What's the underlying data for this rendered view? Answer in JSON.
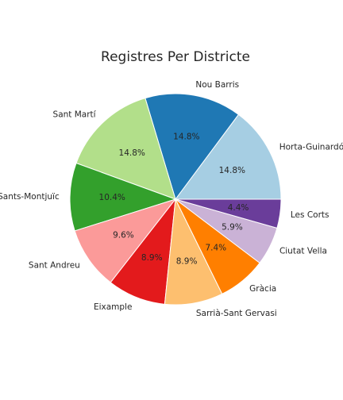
{
  "chart_data": {
    "type": "pie",
    "title": "Registres Per Districte",
    "slices": [
      {
        "label": "Horta-Guinardó",
        "value": 14.8,
        "pct_label": "14.8%",
        "color": "#a6cee3"
      },
      {
        "label": "Nou Barris",
        "value": 14.8,
        "pct_label": "14.8%",
        "color": "#1f78b4"
      },
      {
        "label": "Sant Martí",
        "value": 14.8,
        "pct_label": "14.8%",
        "color": "#b2df8a"
      },
      {
        "label": "Sants-Montjuïc",
        "value": 10.4,
        "pct_label": "10.4%",
        "color": "#33a02c"
      },
      {
        "label": "Sant Andreu",
        "value": 9.6,
        "pct_label": "9.6%",
        "color": "#fb9a99"
      },
      {
        "label": "Eixample",
        "value": 8.9,
        "pct_label": "8.9%",
        "color": "#e31a1c"
      },
      {
        "label": "Sarrià-Sant Gervasi",
        "value": 8.9,
        "pct_label": "8.9%",
        "color": "#fdbf6f"
      },
      {
        "label": "Gràcia",
        "value": 7.4,
        "pct_label": "7.4%",
        "color": "#ff7f00"
      },
      {
        "label": "Ciutat Vella",
        "value": 5.9,
        "pct_label": "5.9%",
        "color": "#cab2d6"
      },
      {
        "label": "Les Corts",
        "value": 4.4,
        "pct_label": "4.4%",
        "color": "#6a3d9a"
      }
    ],
    "start_angle_deg": 0,
    "direction": "counterclockwise"
  }
}
